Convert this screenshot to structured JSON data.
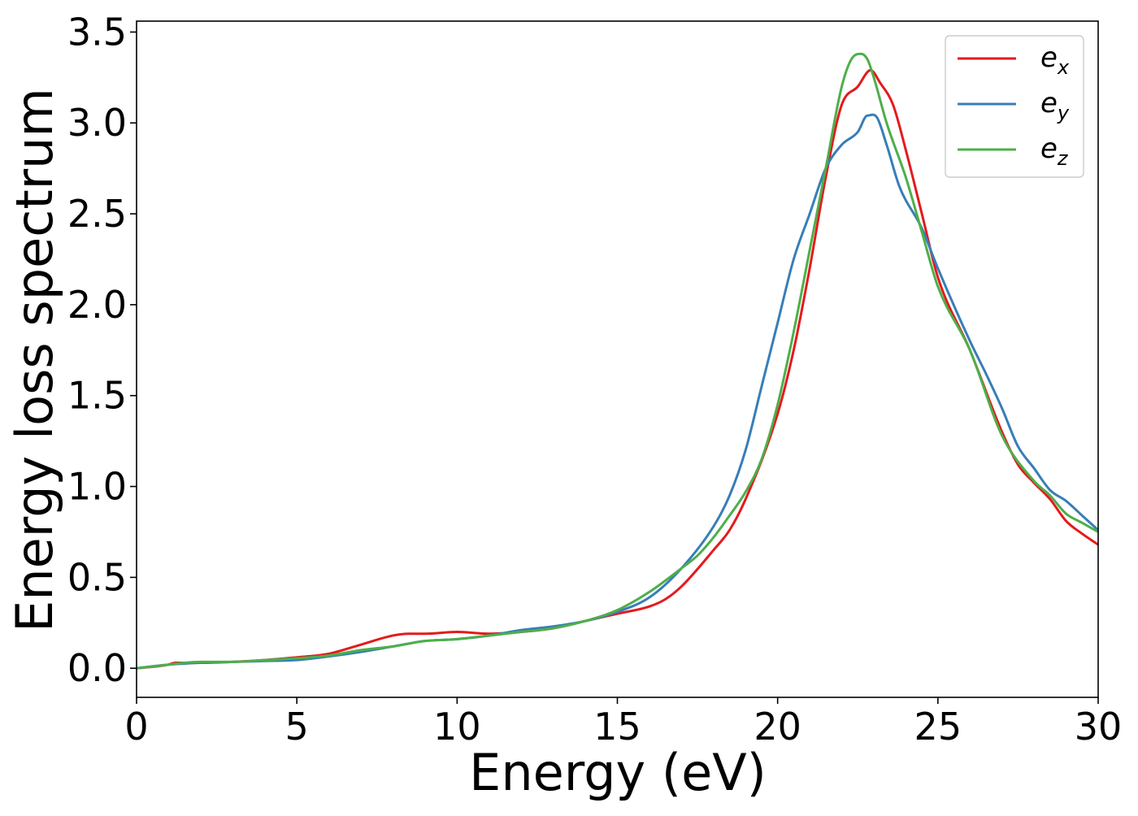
{
  "chart_data": {
    "type": "line",
    "xlabel": "Energy (eV)",
    "ylabel": "Energy loss spectrum",
    "xlim": [
      0,
      30
    ],
    "ylim": [
      -0.16,
      3.56
    ],
    "xticks": [
      0,
      5,
      10,
      15,
      20,
      25,
      30
    ],
    "xtick_labels": [
      "0",
      "5",
      "10",
      "15",
      "20",
      "25",
      "30"
    ],
    "yticks": [
      0,
      0.5,
      1.0,
      1.5,
      2.0,
      2.5,
      3.0,
      3.5
    ],
    "ytick_labels": [
      "0.0",
      "0.5",
      "1.0",
      "1.5",
      "2.0",
      "2.5",
      "3.0",
      "3.5"
    ],
    "grid": false,
    "legend_position": "top-right",
    "series": [
      {
        "name": "e",
        "subscript": "x",
        "color": "#e41a1c",
        "x": [
          0,
          1,
          1.2,
          2,
          3,
          4,
          5,
          6,
          7,
          8,
          8.5,
          9,
          10,
          11,
          12,
          13,
          14,
          15,
          16,
          16.5,
          17,
          18,
          18.5,
          19,
          20,
          20.5,
          21,
          21.5,
          22,
          22.5,
          22.9,
          23.2,
          23.6,
          24,
          24.5,
          25,
          26,
          27,
          27.5,
          28,
          28.5,
          29,
          29.5,
          30
        ],
        "y": [
          0,
          0.02,
          0.03,
          0.03,
          0.035,
          0.045,
          0.06,
          0.08,
          0.13,
          0.18,
          0.19,
          0.19,
          0.2,
          0.19,
          0.2,
          0.22,
          0.26,
          0.3,
          0.34,
          0.38,
          0.45,
          0.65,
          0.76,
          0.93,
          1.4,
          1.75,
          2.2,
          2.7,
          3.1,
          3.2,
          3.29,
          3.22,
          3.1,
          2.85,
          2.5,
          2.15,
          1.75,
          1.3,
          1.12,
          1.02,
          0.93,
          0.81,
          0.74,
          0.68
        ]
      },
      {
        "name": "e",
        "subscript": "y",
        "color": "#377eb8",
        "x": [
          0,
          1,
          2,
          3,
          4,
          5,
          6,
          7,
          8,
          9,
          10,
          11,
          12,
          13,
          14,
          15,
          16,
          17,
          18,
          18.5,
          19,
          19.5,
          20,
          20.5,
          21,
          21.5,
          22,
          22.5,
          22.8,
          23.1,
          23.4,
          23.8,
          24.5,
          25,
          26,
          26.5,
          27,
          27.5,
          28,
          28.5,
          29,
          29.5,
          30
        ],
        "y": [
          0,
          0.02,
          0.03,
          0.035,
          0.04,
          0.045,
          0.065,
          0.09,
          0.12,
          0.15,
          0.16,
          0.18,
          0.21,
          0.23,
          0.26,
          0.31,
          0.39,
          0.55,
          0.78,
          0.95,
          1.2,
          1.55,
          1.9,
          2.25,
          2.5,
          2.75,
          2.88,
          2.95,
          3.04,
          3.03,
          2.88,
          2.65,
          2.42,
          2.2,
          1.8,
          1.62,
          1.43,
          1.22,
          1.1,
          0.98,
          0.92,
          0.84,
          0.76
        ]
      },
      {
        "name": "e",
        "subscript": "z",
        "color": "#4daf4a",
        "x": [
          0,
          1,
          1.5,
          2,
          3,
          4,
          5,
          6,
          7,
          8,
          9,
          10,
          11,
          12,
          13,
          14,
          15,
          16,
          17,
          17.5,
          18,
          18.5,
          19,
          19.5,
          20,
          20.5,
          21,
          21.5,
          22,
          22.3,
          22.6,
          22.8,
          23,
          23.4,
          24,
          24.5,
          25,
          26,
          27,
          28,
          28.5,
          29,
          29.5,
          30
        ],
        "y": [
          0,
          0.02,
          0.03,
          0.035,
          0.035,
          0.045,
          0.055,
          0.07,
          0.1,
          0.12,
          0.15,
          0.16,
          0.18,
          0.2,
          0.22,
          0.26,
          0.32,
          0.42,
          0.55,
          0.62,
          0.72,
          0.84,
          0.97,
          1.15,
          1.45,
          1.85,
          2.3,
          2.75,
          3.2,
          3.35,
          3.38,
          3.35,
          3.25,
          3.0,
          2.7,
          2.4,
          2.1,
          1.75,
          1.28,
          1.03,
          0.95,
          0.85,
          0.8,
          0.75
        ]
      }
    ]
  }
}
